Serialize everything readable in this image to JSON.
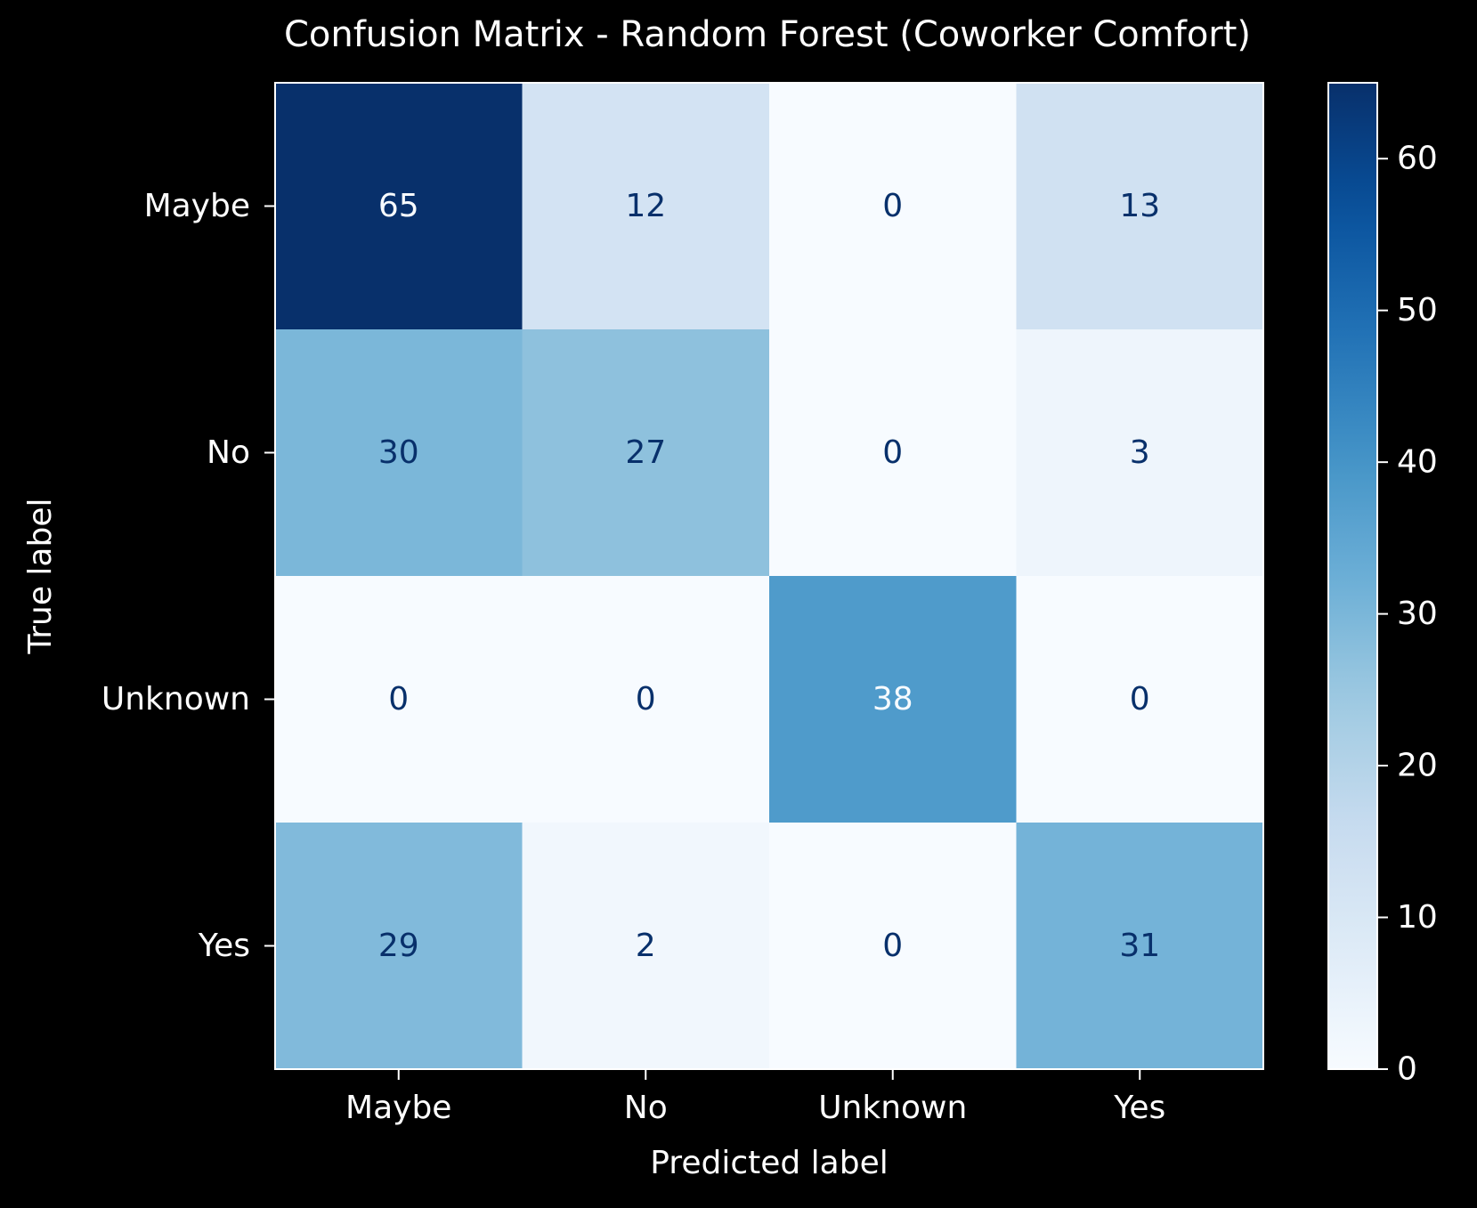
{
  "chart_data": {
    "type": "heatmap",
    "title": "Confusion Matrix - Random Forest (Coworker Comfort)",
    "xlabel": "Predicted label",
    "ylabel": "True label",
    "x_categories": [
      "Maybe",
      "No",
      "Unknown",
      "Yes"
    ],
    "y_categories": [
      "Maybe",
      "No",
      "Unknown",
      "Yes"
    ],
    "values": [
      [
        65,
        12,
        0,
        13
      ],
      [
        30,
        27,
        0,
        3
      ],
      [
        0,
        0,
        38,
        0
      ],
      [
        29,
        2,
        0,
        31
      ]
    ],
    "colormap": "Blues",
    "colorbar": {
      "range": [
        0,
        65
      ],
      "ticks": [
        0,
        10,
        20,
        30,
        40,
        50,
        60
      ]
    },
    "colors": {
      "background": "#000000",
      "text": "#ffffff",
      "cell_text_dark": "#08306b",
      "cell_text_light": "#f7fbff"
    }
  }
}
